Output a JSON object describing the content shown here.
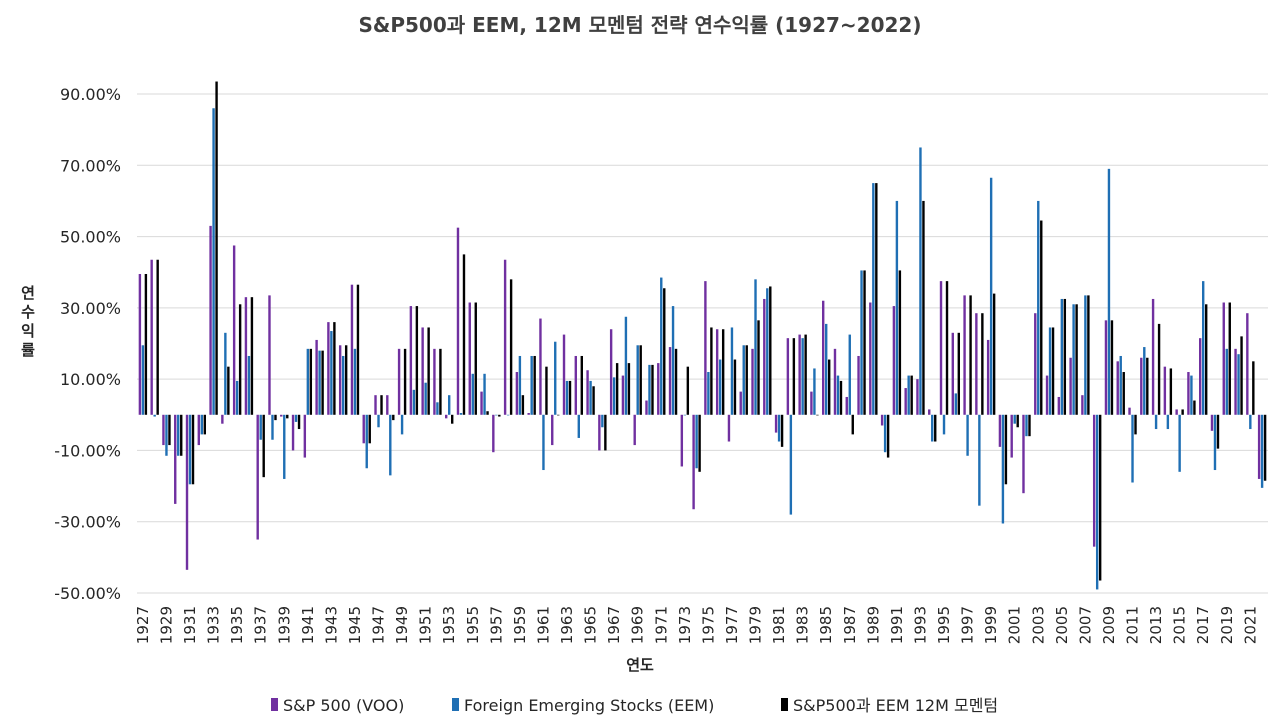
{
  "chart_data": {
    "type": "bar",
    "title": "S&P500과 EEM, 12M 모멘텀 전략 연수익률 (1927~2022)",
    "xlabel": "연도",
    "ylabel": "연수익률",
    "ylim": [
      -50,
      90
    ],
    "yticks": [
      90,
      70,
      50,
      30,
      10,
      -10,
      -30,
      -50
    ],
    "ytick_labels": [
      "90.00%",
      "70.00%",
      "50.00%",
      "30.00%",
      "10.00%",
      "-10.00%",
      "-30.00%",
      "-50.00%"
    ],
    "grid": true,
    "legend_position": "bottom",
    "categories": [
      1927,
      1928,
      1929,
      1930,
      1931,
      1932,
      1933,
      1934,
      1935,
      1936,
      1937,
      1938,
      1939,
      1940,
      1941,
      1942,
      1943,
      1944,
      1945,
      1946,
      1947,
      1948,
      1949,
      1950,
      1951,
      1952,
      1953,
      1954,
      1955,
      1956,
      1957,
      1958,
      1959,
      1960,
      1961,
      1962,
      1963,
      1964,
      1965,
      1966,
      1967,
      1968,
      1969,
      1970,
      1971,
      1972,
      1973,
      1974,
      1975,
      1976,
      1977,
      1978,
      1979,
      1980,
      1981,
      1982,
      1983,
      1984,
      1985,
      1986,
      1987,
      1988,
      1989,
      1990,
      1991,
      1992,
      1993,
      1994,
      1995,
      1996,
      1997,
      1998,
      1999,
      2000,
      2001,
      2002,
      2003,
      2004,
      2005,
      2006,
      2007,
      2008,
      2009,
      2010,
      2011,
      2012,
      2013,
      2014,
      2015,
      2016,
      2017,
      2018,
      2019,
      2020,
      2021,
      2022
    ],
    "xtick_labels": [
      "1927",
      "1929",
      "1931",
      "1933",
      "1935",
      "1937",
      "1939",
      "1941",
      "1943",
      "1945",
      "1947",
      "1949",
      "1951",
      "1953",
      "1955",
      "1957",
      "1959",
      "1961",
      "1963",
      "1965",
      "1967",
      "1969",
      "1971",
      "1973",
      "1975",
      "1977",
      "1979",
      "1981",
      "1983",
      "1985",
      "1987",
      "1989",
      "1991",
      "1993",
      "1995",
      "1997",
      "1999",
      "2001",
      "2003",
      "2005",
      "2007",
      "2009",
      "2011",
      "2013",
      "2015",
      "2017",
      "2019",
      "2021"
    ],
    "series": [
      {
        "name": "S&P 500 (VOO)",
        "color": "#7030a0",
        "values": [
          39.5,
          43.5,
          -8.5,
          -25.0,
          -43.5,
          -8.5,
          53.0,
          -2.5,
          47.5,
          33.0,
          -35.0,
          33.5,
          -0.5,
          -10.0,
          -12.0,
          21.0,
          26.0,
          19.5,
          36.5,
          -8.0,
          5.5,
          5.5,
          18.5,
          30.5,
          24.5,
          18.5,
          -1.0,
          52.5,
          31.5,
          6.5,
          -10.5,
          43.5,
          12.0,
          0.5,
          27.0,
          -8.5,
          22.5,
          16.5,
          12.5,
          -10.0,
          24.0,
          11.0,
          -8.5,
          4.0,
          14.5,
          19.0,
          -14.5,
          -26.5,
          37.5,
          24.0,
          -7.5,
          6.5,
          18.5,
          32.5,
          -5.0,
          21.5,
          22.5,
          6.5,
          32.0,
          18.5,
          5.0,
          16.5,
          31.5,
          -3.0,
          30.5,
          7.5,
          10.0,
          1.5,
          37.5,
          23.0,
          33.5,
          28.5,
          21.0,
          -9.0,
          -12.0,
          -22.0,
          28.5,
          11.0,
          5.0,
          16.0,
          5.5,
          -37.0,
          26.5,
          15.0,
          2.0,
          16.0,
          32.5,
          13.5,
          1.5,
          12.0,
          21.5,
          -4.5,
          31.5,
          18.5,
          28.5,
          -18.0
        ]
      },
      {
        "name": "Foreign Emerging  Stocks (EEM)",
        "color": "#1f6fb4",
        "values": [
          19.5,
          -0.5,
          -11.5,
          -11.5,
          -19.5,
          -5.5,
          86.0,
          23.0,
          9.5,
          16.5,
          -7.0,
          -7.0,
          -18.0,
          -2.0,
          18.5,
          18.0,
          23.5,
          16.5,
          18.5,
          -15.0,
          -3.5,
          -17.0,
          -5.5,
          7.0,
          9.0,
          3.5,
          5.5,
          0.5,
          11.5,
          11.5,
          0.0,
          0.0,
          16.5,
          16.5,
          -15.5,
          20.5,
          9.5,
          -6.5,
          9.5,
          -3.5,
          10.5,
          27.5,
          19.5,
          14.0,
          38.5,
          30.5,
          0.0,
          -15.0,
          12.0,
          15.5,
          24.5,
          19.5,
          38.0,
          35.5,
          -7.5,
          -28.0,
          21.5,
          13.0,
          25.5,
          11.0,
          22.5,
          40.5,
          65.0,
          -10.5,
          60.0,
          11.0,
          75.0,
          -7.5,
          -5.5,
          6.0,
          -11.5,
          -25.5,
          66.5,
          -30.5,
          -2.5,
          -6.0,
          60.0,
          24.5,
          32.5,
          31.0,
          33.5,
          -49.0,
          69.0,
          16.5,
          -19.0,
          19.0,
          -4.0,
          -4.0,
          -16.0,
          11.0,
          37.5,
          -15.5,
          18.5,
          17.0,
          -4.0,
          -20.5
        ]
      },
      {
        "name": "S&P500과 EEM 12M 모멘텀",
        "color": "#000000",
        "values": [
          39.5,
          43.5,
          -8.5,
          -11.5,
          -19.5,
          -5.5,
          93.5,
          13.5,
          31.0,
          33.0,
          -17.5,
          -1.5,
          -1.0,
          -4.0,
          18.5,
          18.0,
          26.0,
          19.5,
          36.5,
          -8.0,
          5.5,
          -1.5,
          18.5,
          30.5,
          24.5,
          18.5,
          -2.5,
          45.0,
          31.5,
          1.0,
          -0.5,
          38.0,
          5.5,
          16.5,
          13.5,
          0.0,
          9.5,
          16.5,
          8.0,
          -10.0,
          14.5,
          14.5,
          19.5,
          14.0,
          35.5,
          18.5,
          13.5,
          -16.0,
          24.5,
          24.0,
          15.5,
          19.5,
          26.5,
          36.0,
          -9.0,
          21.5,
          22.5,
          0.0,
          15.5,
          9.5,
          -5.5,
          40.5,
          65.0,
          -12.0,
          40.5,
          11.0,
          60.0,
          -7.5,
          37.5,
          23.0,
          33.5,
          28.5,
          34.0,
          -19.5,
          -3.5,
          -6.0,
          54.5,
          24.5,
          32.5,
          31.0,
          33.5,
          -46.5,
          26.5,
          12.0,
          -5.5,
          16.0,
          25.5,
          13.0,
          1.5,
          4.0,
          31.0,
          -9.5,
          31.5,
          22.0,
          15.0,
          -18.5
        ]
      }
    ]
  }
}
